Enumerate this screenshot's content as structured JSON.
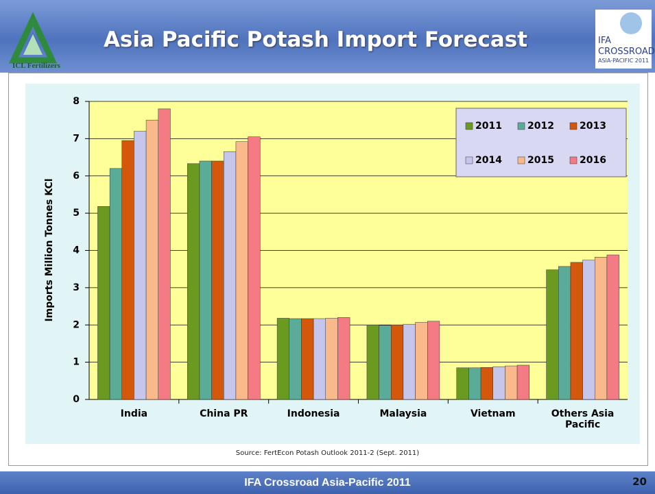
{
  "header": {
    "title": "Asia Pacific Potash Import Forecast",
    "left_logo": "ICL Fertilizers",
    "right_logo": [
      "IFA",
      "CROSSROADS",
      "ASIA-PACIFIC 2011"
    ]
  },
  "chart_data": {
    "type": "bar",
    "ylabel": "Imports Million Tonnes KCl",
    "categories": [
      "India",
      "China PR",
      "Indonesia",
      "Malaysia",
      "Vietnam",
      "Others Asia Pacific"
    ],
    "series": [
      {
        "name": "2011",
        "color": "#6a9a1f",
        "values": [
          5.18,
          6.33,
          2.18,
          2.0,
          0.85,
          3.48
        ]
      },
      {
        "name": "2012",
        "color": "#5aab98",
        "values": [
          6.2,
          6.4,
          2.17,
          1.99,
          0.85,
          3.57
        ]
      },
      {
        "name": "2013",
        "color": "#d4580b",
        "values": [
          6.95,
          6.4,
          2.17,
          2.0,
          0.86,
          3.68
        ]
      },
      {
        "name": "2014",
        "color": "#c6c6ec",
        "values": [
          7.2,
          6.65,
          2.17,
          2.02,
          0.88,
          3.74
        ]
      },
      {
        "name": "2015",
        "color": "#f9b98a",
        "values": [
          7.5,
          6.92,
          2.18,
          2.07,
          0.9,
          3.82
        ]
      },
      {
        "name": "2016",
        "color": "#f47a84",
        "values": [
          7.8,
          7.05,
          2.2,
          2.1,
          0.92,
          3.88
        ]
      }
    ],
    "ylim": [
      0,
      8
    ],
    "yticks": [
      0,
      1,
      2,
      3,
      4,
      5,
      6,
      7,
      8
    ],
    "grid": true,
    "legend": "upper right"
  },
  "source": "Source: FertEcon Potash Outlook 2011-2 (Sept. 2011)",
  "footer": {
    "title": "IFA Crossroad Asia-Pacific 2011",
    "page": "20"
  }
}
